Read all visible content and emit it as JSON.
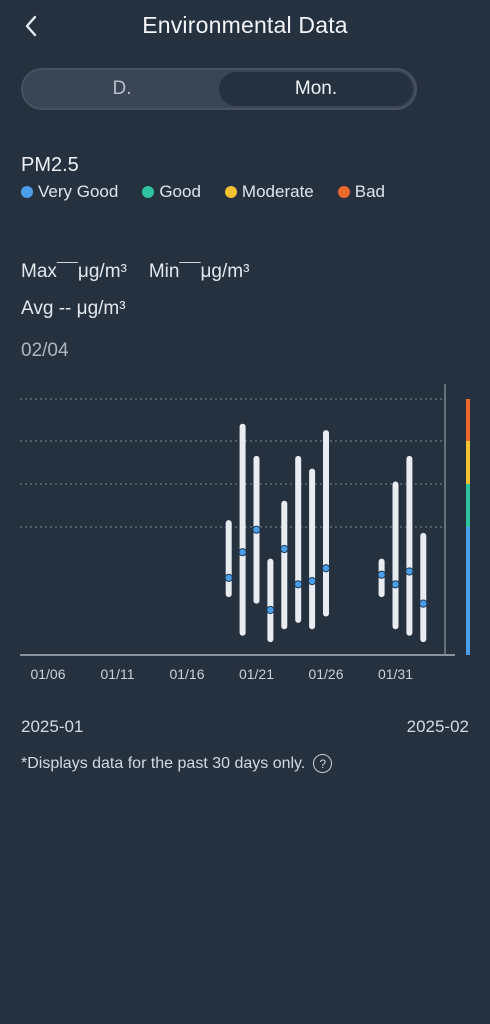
{
  "header": {
    "title": "Environmental Data",
    "back_icon": "chevron-left-icon"
  },
  "segment": {
    "options": [
      "D.",
      "Mon."
    ],
    "selected": "Mon."
  },
  "metric": "PM2.5",
  "legend": [
    {
      "label": "Very Good",
      "color": "#4a9fe8"
    },
    {
      "label": "Good",
      "color": "#2ec4a0"
    },
    {
      "label": "Moderate",
      "color": "#f2c230"
    },
    {
      "label": "Bad",
      "color": "#ee6a2a"
    }
  ],
  "stats": {
    "max_label": "Max",
    "max_value": "¯¯",
    "min_label": "Min",
    "min_value": "¯¯",
    "avg_label": "Avg",
    "avg_value": "--",
    "unit": "μg/m³"
  },
  "selected_date": "02/04",
  "chart_data": {
    "type": "range-bar",
    "x_tick_labels": [
      "01/06",
      "01/11",
      "01/16",
      "01/21",
      "01/26",
      "01/31"
    ],
    "scale_bands": [
      {
        "label": "Very Good",
        "color": "#4a9fe8"
      },
      {
        "label": "Good",
        "color": "#2ec4a0"
      },
      {
        "label": "Moderate",
        "color": "#f2c230"
      },
      {
        "label": "Bad",
        "color": "#ee6a2a"
      }
    ],
    "series": [
      {
        "date": "01/19",
        "min": 9,
        "max": 21,
        "avg": 12
      },
      {
        "date": "01/20",
        "min": 3,
        "max": 36,
        "avg": 16
      },
      {
        "date": "01/21",
        "min": 8,
        "max": 31,
        "avg": 19.5
      },
      {
        "date": "01/22",
        "min": 2,
        "max": 15,
        "avg": 7
      },
      {
        "date": "01/23",
        "min": 4,
        "max": 24,
        "avg": 16.5
      },
      {
        "date": "01/24",
        "min": 5,
        "max": 31,
        "avg": 11
      },
      {
        "date": "01/25",
        "min": 4,
        "max": 29,
        "avg": 11.5
      },
      {
        "date": "01/26",
        "min": 6,
        "max": 35,
        "avg": 13.5
      },
      {
        "date": "01/30",
        "min": 9,
        "max": 15,
        "avg": 12.5
      },
      {
        "date": "01/31",
        "min": 4,
        "max": 27,
        "avg": 11
      },
      {
        "date": "02/01",
        "min": 3,
        "max": 31,
        "avg": 13
      },
      {
        "date": "02/02",
        "min": 2,
        "max": 19,
        "avg": 8
      }
    ]
  },
  "months": {
    "left": "2025-01",
    "right": "2025-02"
  },
  "footnote": "*Displays data for the past 30 days only."
}
